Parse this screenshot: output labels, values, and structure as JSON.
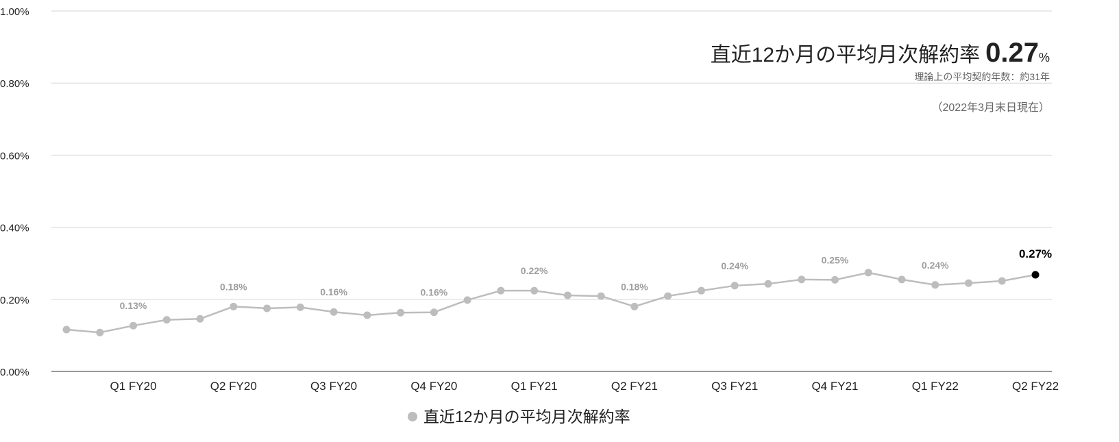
{
  "chart_data": {
    "type": "line",
    "categories": [
      null,
      null,
      "Q1 FY20",
      null,
      null,
      "Q2 FY20",
      null,
      null,
      "Q3 FY20",
      null,
      null,
      "Q4 FY20",
      null,
      null,
      "Q1 FY21",
      null,
      null,
      "Q2 FY21",
      null,
      null,
      "Q3 FY21",
      null,
      null,
      "Q4 FY21",
      null,
      null,
      "Q1 FY22",
      null,
      null,
      "Q2 FY22"
    ],
    "series": [
      {
        "name": "直近12か月の平均月次解約率",
        "color": "#bdbdbd",
        "highlight_color": "#000000",
        "values": [
          0.116,
          0.108,
          0.127,
          0.143,
          0.146,
          0.18,
          0.175,
          0.178,
          0.165,
          0.156,
          0.163,
          0.164,
          0.198,
          0.224,
          0.224,
          0.211,
          0.209,
          0.18,
          0.209,
          0.224,
          0.238,
          0.243,
          0.255,
          0.254,
          0.274,
          0.255,
          0.24,
          0.245,
          0.251,
          0.268
        ],
        "value_labels": [
          null,
          null,
          "0.13%",
          null,
          null,
          "0.18%",
          null,
          null,
          "0.16%",
          null,
          null,
          "0.16%",
          null,
          null,
          "0.22%",
          null,
          null,
          "0.18%",
          null,
          null,
          "0.24%",
          null,
          null,
          "0.25%",
          null,
          null,
          "0.24%",
          null,
          null,
          "0.27%"
        ]
      }
    ],
    "ylim": [
      0,
      1
    ],
    "yticks": [
      {
        "value": 0,
        "label": "0.00%"
      },
      {
        "value": 0.2,
        "label": "0.20%"
      },
      {
        "value": 0.4,
        "label": "0.40%"
      },
      {
        "value": 0.6,
        "label": "0.60%"
      },
      {
        "value": 0.8,
        "label": "0.80%"
      },
      {
        "value": 1,
        "label": "1.00%"
      }
    ],
    "grid": true,
    "legend": "bottom",
    "annotations": {
      "headline": "直近12か月の平均月次解約率",
      "headline_value": "0.27",
      "headline_unit": "%",
      "note": "理論上の平均契約年数：約31年",
      "as_of": "（2022年3月末日現在）"
    }
  }
}
